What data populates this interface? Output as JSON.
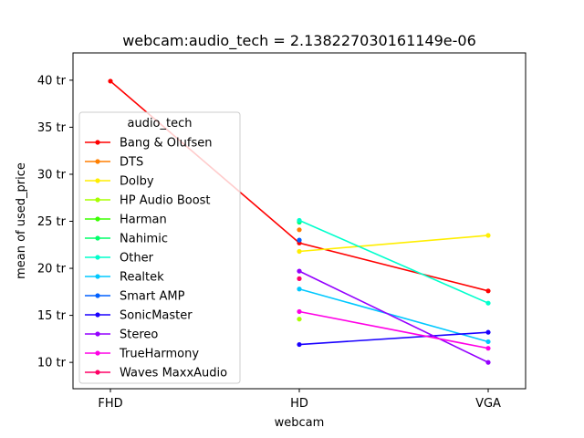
{
  "chart_data": {
    "type": "line",
    "title": "webcam:audio_tech = 2.138227030161149e-06",
    "xlabel": "webcam",
    "ylabel": "mean of used_price",
    "categories": [
      "FHD",
      "HD",
      "VGA"
    ],
    "ylim": [
      7.2,
      42.9
    ],
    "yticks": [
      10,
      15,
      20,
      25,
      30,
      35,
      40
    ],
    "ytick_labels": [
      "10 tr",
      "15 tr",
      "20 tr",
      "25 tr",
      "30 tr",
      "35 tr",
      "40 tr"
    ],
    "grid": false,
    "legend": {
      "title": "audio_tech",
      "placement": "center-left"
    },
    "series": [
      {
        "name": "Bang & Olufsen",
        "color": "#ff0000",
        "values": [
          39.9,
          22.7,
          17.6
        ]
      },
      {
        "name": "DTS",
        "color": "#ff7f00",
        "values": [
          null,
          24.1,
          null
        ]
      },
      {
        "name": "Dolby",
        "color": "#ffee00",
        "values": [
          null,
          21.8,
          23.5
        ]
      },
      {
        "name": "HP Audio Boost",
        "color": "#a8ff00",
        "values": [
          null,
          14.6,
          null
        ]
      },
      {
        "name": "Harman",
        "color": "#3bff00",
        "values": [
          null,
          25.0,
          null
        ]
      },
      {
        "name": "Nahimic",
        "color": "#00ff6a",
        "values": [
          null,
          24.9,
          null
        ]
      },
      {
        "name": "Other",
        "color": "#00ffcc",
        "values": [
          null,
          25.1,
          16.3
        ]
      },
      {
        "name": "Realtek",
        "color": "#00c8ff",
        "values": [
          null,
          17.8,
          12.2
        ]
      },
      {
        "name": "Smart AMP",
        "color": "#0060ff",
        "values": [
          null,
          23.0,
          null
        ]
      },
      {
        "name": "SonicMaster",
        "color": "#1a00ff",
        "values": [
          null,
          11.9,
          13.2
        ]
      },
      {
        "name": "Stereo",
        "color": "#9400ff",
        "values": [
          null,
          19.7,
          10.0
        ]
      },
      {
        "name": "TrueHarmony",
        "color": "#ff00e6",
        "values": [
          null,
          15.4,
          11.5
        ]
      },
      {
        "name": "Waves MaxxAudio",
        "color": "#ff0066",
        "values": [
          null,
          18.9,
          null
        ]
      }
    ]
  }
}
